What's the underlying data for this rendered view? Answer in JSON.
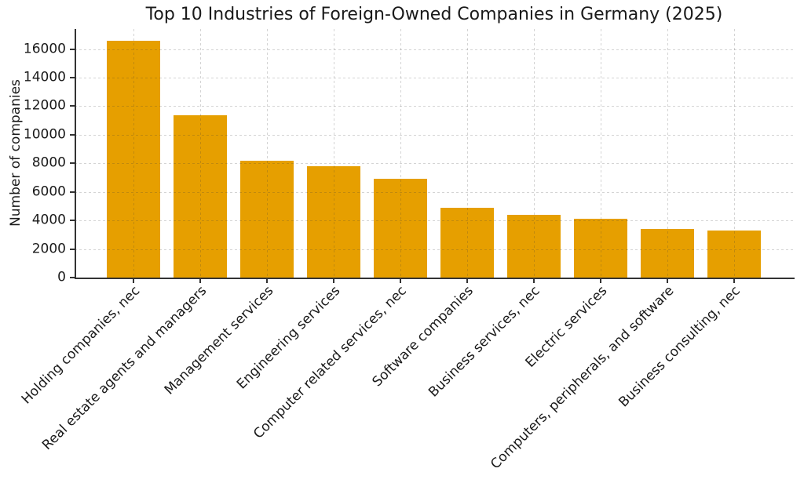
{
  "chart_data": {
    "type": "bar",
    "title": "Top 10 Industries of Foreign-Owned Companies in Germany (2025)",
    "xlabel": "",
    "ylabel": "Number of companies",
    "categories": [
      "Holding companies, nec",
      "Real estate agents and managers",
      "Management services",
      "Engineering services",
      "Computer related services, nec",
      "Software companies",
      "Business services, nec",
      "Electric services",
      "Computers, peripherals, and software",
      "Business consulting, nec"
    ],
    "values": [
      16600,
      11350,
      8200,
      7800,
      6900,
      4900,
      4400,
      4100,
      3400,
      3300
    ],
    "yticks": [
      0,
      2000,
      4000,
      6000,
      8000,
      10000,
      12000,
      14000,
      16000
    ],
    "ylim": [
      0,
      17400
    ],
    "grid": true,
    "legend": false,
    "bar_color": "#E69F00",
    "x_tick_rotation_deg": 45
  }
}
